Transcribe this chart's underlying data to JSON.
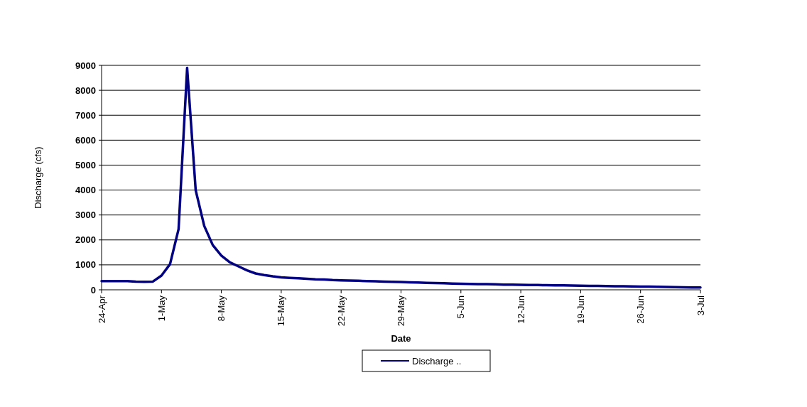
{
  "chart_data": {
    "type": "line",
    "xlabel": "Date",
    "ylabel": "Discharge (cfs)",
    "x": [
      "--04-24",
      "--04-25",
      "--04-26",
      "--04-27",
      "--04-28",
      "--04-29",
      "--04-30",
      "--05-01",
      "--05-02",
      "--05-03",
      "--05-04",
      "--05-05",
      "--05-06",
      "--05-07",
      "--05-08",
      "--05-09",
      "--05-10",
      "--05-11",
      "--05-12",
      "--05-13",
      "--05-14",
      "--05-15",
      "--05-16",
      "--05-17",
      "--05-18",
      "--05-19",
      "--05-20",
      "--05-21",
      "--05-22",
      "--05-23",
      "--05-24",
      "--05-25",
      "--05-26",
      "--05-27",
      "--05-28",
      "--05-29",
      "--05-30",
      "--05-31",
      "--06-01",
      "--06-02",
      "--06-03",
      "--06-04",
      "--06-05",
      "--06-06",
      "--06-07",
      "--06-08",
      "--06-09",
      "--06-10",
      "--06-11",
      "--06-12",
      "--06-13",
      "--06-14",
      "--06-15",
      "--06-16",
      "--06-17",
      "--06-18",
      "--06-19",
      "--06-20",
      "--06-21",
      "--06-22",
      "--06-23",
      "--06-24",
      "--06-25",
      "--06-26",
      "--06-27",
      "--06-28",
      "--06-29",
      "--06-30",
      "--07-01",
      "--07-02",
      "--07-03"
    ],
    "series": [
      {
        "name": "Discharge ..",
        "color": "#000080",
        "values": [
          350,
          350,
          350,
          350,
          330,
          320,
          330,
          570,
          1030,
          2430,
          8900,
          3990,
          2560,
          1790,
          1370,
          1100,
          940,
          780,
          655,
          590,
          540,
          500,
          480,
          460,
          440,
          420,
          410,
          390,
          380,
          370,
          360,
          350,
          340,
          330,
          320,
          310,
          300,
          290,
          280,
          270,
          260,
          250,
          240,
          235,
          230,
          225,
          220,
          210,
          205,
          200,
          195,
          190,
          185,
          180,
          175,
          170,
          165,
          160,
          155,
          150,
          145,
          140,
          135,
          130,
          125,
          120,
          115,
          105,
          100,
          95,
          90
        ]
      }
    ],
    "xlim": [
      "--04-24",
      "--07-03"
    ],
    "xticks": [
      {
        "value": "--04-24",
        "label": "24-Apr"
      },
      {
        "value": "--05-01",
        "label": "1-May"
      },
      {
        "value": "--05-08",
        "label": "8-May"
      },
      {
        "value": "--05-15",
        "label": "15-May"
      },
      {
        "value": "--05-22",
        "label": "22-May"
      },
      {
        "value": "--05-29",
        "label": "29-May"
      },
      {
        "value": "--06-05",
        "label": "5-Jun"
      },
      {
        "value": "--06-12",
        "label": "12-Jun"
      },
      {
        "value": "--06-19",
        "label": "19-Jun"
      },
      {
        "value": "--06-26",
        "label": "26-Jun"
      },
      {
        "value": "--07-03",
        "label": "3-Jul"
      }
    ],
    "ylim": [
      0,
      9000
    ],
    "yticks": [
      0,
      1000,
      2000,
      3000,
      4000,
      5000,
      6000,
      7000,
      8000,
      9000
    ],
    "grid": "y",
    "legend": "bottom",
    "line_style": "solid",
    "marker": "none"
  }
}
